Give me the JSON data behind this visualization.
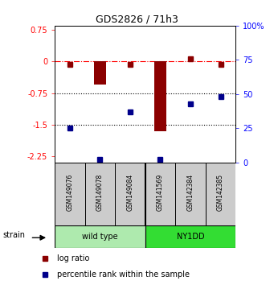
{
  "title": "GDS2826 / 71h3",
  "samples": [
    "GSM149076",
    "GSM149078",
    "GSM149084",
    "GSM141569",
    "GSM142384",
    "GSM142385"
  ],
  "log_ratio_bars": [
    1,
    3
  ],
  "log_ratio_bar_values": [
    -0.55,
    -1.65
  ],
  "log_ratio_points": [
    0,
    2,
    4,
    5
  ],
  "log_ratio_point_values": [
    -0.07,
    -0.07,
    0.07,
    -0.07
  ],
  "percentile_rank": [
    25,
    2,
    37,
    2,
    43,
    48
  ],
  "ylim_left": [
    -2.4,
    0.85
  ],
  "ylim_right": [
    0,
    100
  ],
  "yticks_left": [
    0.75,
    0,
    -0.75,
    -1.5,
    -2.25
  ],
  "yticks_right": [
    100,
    75,
    50,
    25,
    0
  ],
  "hlines_dotted": [
    -0.75,
    -1.5
  ],
  "hline_dashdot": 0,
  "bar_color": "#8B0000",
  "blue_color": "#00008B",
  "bar_width": 0.4,
  "wt_color": "#aeeaae",
  "ny_color": "#33dd33",
  "sample_box_color": "#cccccc",
  "legend_log_ratio": "log ratio",
  "legend_percentile": "percentile rank within the sample"
}
